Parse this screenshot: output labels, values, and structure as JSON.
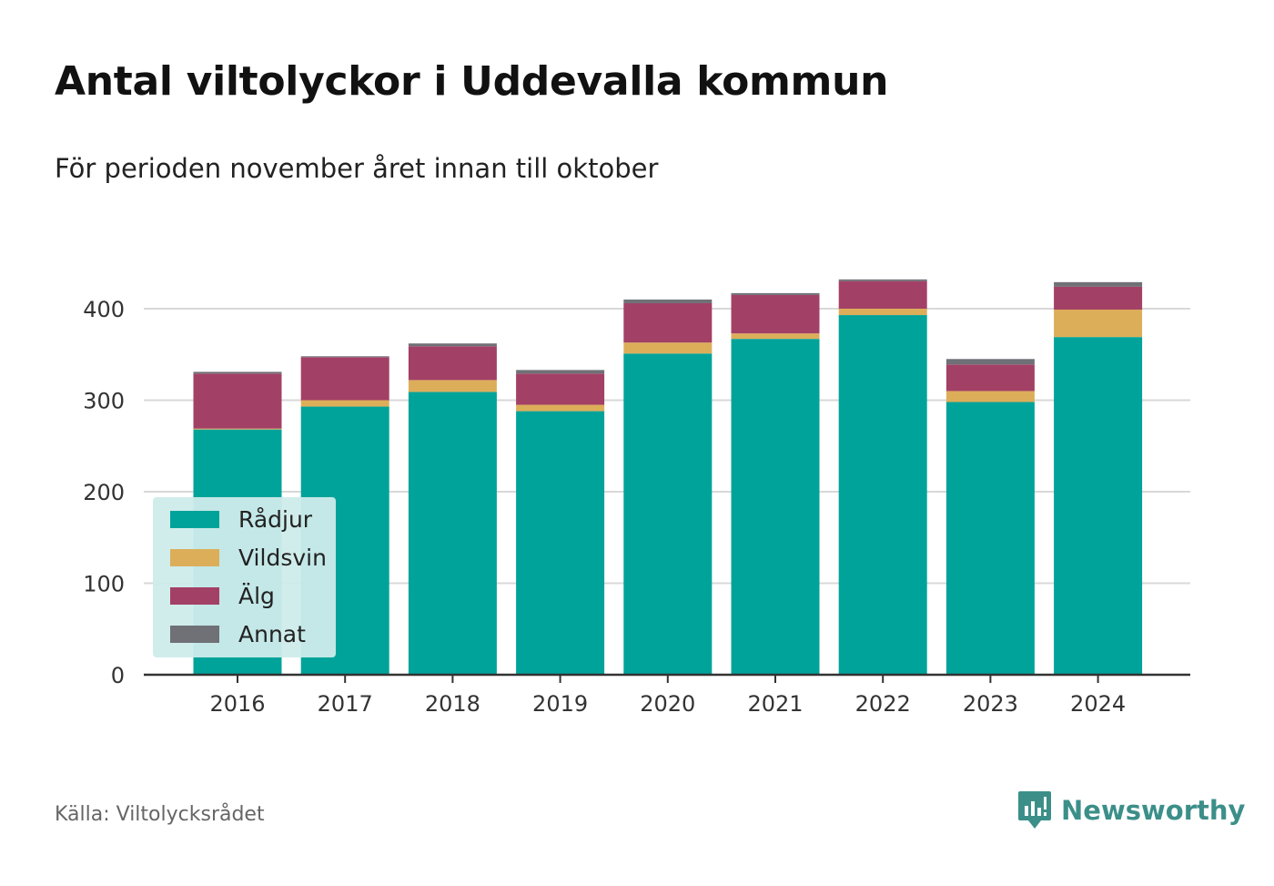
{
  "header": {
    "title": "Antal viltolyckor i Uddevalla kommun",
    "subtitle": "För perioden november året innan till oktober"
  },
  "footer": {
    "source": "Källa: Viltolycksrådet",
    "brand": "Newsworthy",
    "brand_icon": "bar-chart-speech-bubble-icon"
  },
  "colors": {
    "Rådjur": "#00a39a",
    "Vildsvin": "#dcae5a",
    "Älg": "#a34066",
    "Annat": "#707077",
    "grid": "#d8d8d8",
    "axis": "#333333",
    "legend_bg": "#cdeceb",
    "brand": "#3c8f89"
  },
  "chart_data": {
    "type": "bar",
    "stacked": true,
    "title": "Antal viltolyckor i Uddevalla kommun",
    "subtitle": "För perioden november året innan till oktober",
    "xlabel": "",
    "ylabel": "",
    "categories": [
      "2016",
      "2017",
      "2018",
      "2019",
      "2020",
      "2021",
      "2022",
      "2023",
      "2024"
    ],
    "series": [
      {
        "name": "Rådjur",
        "values": [
          268,
          293,
          309,
          288,
          351,
          367,
          393,
          298,
          369
        ]
      },
      {
        "name": "Vildsvin",
        "values": [
          1,
          7,
          13,
          7,
          12,
          6,
          7,
          12,
          30
        ]
      },
      {
        "name": "Älg",
        "values": [
          60,
          47,
          37,
          34,
          43,
          42,
          30,
          29,
          25
        ]
      },
      {
        "name": "Annat",
        "values": [
          2,
          1,
          3,
          4,
          4,
          2,
          2,
          6,
          5
        ]
      }
    ],
    "ylim": [
      0,
      440
    ],
    "yticks": [
      0,
      100,
      200,
      300,
      400
    ],
    "grid": true,
    "legend": {
      "position": "bottom-left",
      "entries": [
        "Rådjur",
        "Vildsvin",
        "Älg",
        "Annat"
      ]
    }
  }
}
